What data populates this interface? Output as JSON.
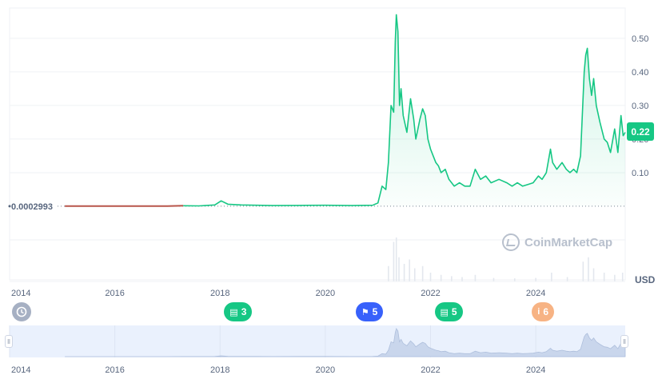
{
  "chart_data": {
    "type": "line",
    "currency": "USD",
    "start_price_label": "0.0002993",
    "current_price_label": "0.22",
    "y_ticks": [
      "0.10",
      "0.20",
      "0.30",
      "0.40",
      "0.50"
    ],
    "y_tick_values": [
      0.1,
      0.2,
      0.3,
      0.4,
      0.5
    ],
    "ylim": [
      -0.1,
      0.59
    ],
    "xlim": [
      2014.0,
      2025.7
    ],
    "x_ticks": [
      "2014",
      "2016",
      "2018",
      "2020",
      "2022",
      "2024"
    ],
    "x_tick_values": [
      2014,
      2016,
      2018,
      2020,
      2022,
      2024
    ],
    "grid": true,
    "series": [
      {
        "line_color": "#16c784",
        "below_start_color": "#b8554a",
        "points": [
          [
            2015.05,
            0.0003
          ],
          [
            2015.5,
            0.0003
          ],
          [
            2016.0,
            0.0003
          ],
          [
            2016.5,
            0.0003
          ],
          [
            2017.0,
            0.0003
          ],
          [
            2017.3,
            0.0015
          ],
          [
            2017.6,
            0.0012
          ],
          [
            2017.9,
            0.004
          ],
          [
            2018.02,
            0.016
          ],
          [
            2018.15,
            0.006
          ],
          [
            2018.4,
            0.004
          ],
          [
            2018.7,
            0.003
          ],
          [
            2019.0,
            0.002
          ],
          [
            2019.5,
            0.0025
          ],
          [
            2020.0,
            0.003
          ],
          [
            2020.5,
            0.002
          ],
          [
            2020.9,
            0.003
          ],
          [
            2021.0,
            0.01
          ],
          [
            2021.08,
            0.06
          ],
          [
            2021.15,
            0.05
          ],
          [
            2021.2,
            0.13
          ],
          [
            2021.25,
            0.3
          ],
          [
            2021.3,
            0.28
          ],
          [
            2021.33,
            0.49
          ],
          [
            2021.35,
            0.57
          ],
          [
            2021.38,
            0.52
          ],
          [
            2021.41,
            0.3
          ],
          [
            2021.44,
            0.35
          ],
          [
            2021.48,
            0.27
          ],
          [
            2021.55,
            0.22
          ],
          [
            2021.62,
            0.32
          ],
          [
            2021.68,
            0.26
          ],
          [
            2021.72,
            0.2
          ],
          [
            2021.8,
            0.26
          ],
          [
            2021.85,
            0.29
          ],
          [
            2021.9,
            0.27
          ],
          [
            2021.95,
            0.2
          ],
          [
            2022.0,
            0.17
          ],
          [
            2022.05,
            0.15
          ],
          [
            2022.1,
            0.13
          ],
          [
            2022.15,
            0.12
          ],
          [
            2022.2,
            0.1
          ],
          [
            2022.28,
            0.11
          ],
          [
            2022.35,
            0.08
          ],
          [
            2022.45,
            0.06
          ],
          [
            2022.55,
            0.07
          ],
          [
            2022.65,
            0.06
          ],
          [
            2022.75,
            0.06
          ],
          [
            2022.85,
            0.11
          ],
          [
            2022.95,
            0.08
          ],
          [
            2023.05,
            0.09
          ],
          [
            2023.15,
            0.07
          ],
          [
            2023.3,
            0.08
          ],
          [
            2023.45,
            0.07
          ],
          [
            2023.55,
            0.06
          ],
          [
            2023.65,
            0.07
          ],
          [
            2023.75,
            0.06
          ],
          [
            2023.85,
            0.065
          ],
          [
            2023.95,
            0.07
          ],
          [
            2024.05,
            0.09
          ],
          [
            2024.12,
            0.08
          ],
          [
            2024.2,
            0.1
          ],
          [
            2024.28,
            0.17
          ],
          [
            2024.32,
            0.13
          ],
          [
            2024.4,
            0.11
          ],
          [
            2024.5,
            0.13
          ],
          [
            2024.58,
            0.11
          ],
          [
            2024.65,
            0.1
          ],
          [
            2024.72,
            0.11
          ],
          [
            2024.78,
            0.1
          ],
          [
            2024.85,
            0.15
          ],
          [
            2024.92,
            0.4
          ],
          [
            2024.95,
            0.45
          ],
          [
            2024.98,
            0.47
          ],
          [
            2025.02,
            0.38
          ],
          [
            2025.06,
            0.33
          ],
          [
            2025.1,
            0.38
          ],
          [
            2025.15,
            0.3
          ],
          [
            2025.22,
            0.25
          ],
          [
            2025.3,
            0.2
          ],
          [
            2025.36,
            0.19
          ],
          [
            2025.42,
            0.16
          ],
          [
            2025.5,
            0.23
          ],
          [
            2025.56,
            0.16
          ],
          [
            2025.62,
            0.27
          ],
          [
            2025.66,
            0.21
          ],
          [
            2025.7,
            0.22
          ]
        ]
      }
    ],
    "volume_bars": [
      [
        2021.2,
        0.35
      ],
      [
        2021.3,
        0.9
      ],
      [
        2021.35,
        1.0
      ],
      [
        2021.4,
        0.55
      ],
      [
        2021.5,
        0.4
      ],
      [
        2021.6,
        0.5
      ],
      [
        2021.7,
        0.3
      ],
      [
        2021.85,
        0.35
      ],
      [
        2022.0,
        0.2
      ],
      [
        2022.2,
        0.15
      ],
      [
        2022.4,
        0.12
      ],
      [
        2022.6,
        0.1
      ],
      [
        2022.85,
        0.15
      ],
      [
        2023.2,
        0.08
      ],
      [
        2023.6,
        0.07
      ],
      [
        2024.0,
        0.08
      ],
      [
        2024.3,
        0.2
      ],
      [
        2024.6,
        0.1
      ],
      [
        2024.9,
        0.45
      ],
      [
        2025.0,
        0.55
      ],
      [
        2025.1,
        0.3
      ],
      [
        2025.3,
        0.2
      ],
      [
        2025.5,
        0.15
      ],
      [
        2025.65,
        0.2
      ]
    ],
    "navigator": {
      "x_ticks": [
        "2014",
        "2016",
        "2018",
        "2020",
        "2022",
        "2024"
      ]
    },
    "events": [
      {
        "label": "3",
        "icon": "document-icon",
        "color": "#16c784",
        "x": 2018.35
      },
      {
        "label": "5",
        "icon": "flag-icon",
        "color": "#3861fb",
        "x": 2020.85
      },
      {
        "label": "5",
        "icon": "document-icon",
        "color": "#16c784",
        "x": 2022.35
      },
      {
        "label": "6",
        "icon": "info-icon",
        "color": "#f7b384",
        "x": 2024.2
      }
    ],
    "watermark": "CoinMarketCap"
  },
  "controls": {
    "history_icon": "history-icon",
    "left_handle": "ll",
    "right_handle": "ll"
  }
}
